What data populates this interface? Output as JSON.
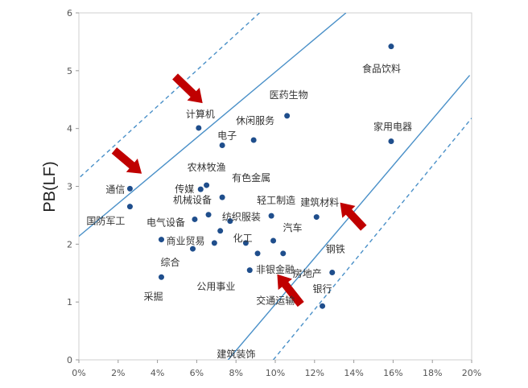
{
  "chart_data": {
    "type": "scatter",
    "ylabel": "PB(LF)",
    "xlim": [
      0,
      20
    ],
    "ylim": [
      0,
      6
    ],
    "x_ticks": [
      "0%",
      "2%",
      "4%",
      "6%",
      "8%",
      "10%",
      "12%",
      "14%",
      "16%",
      "18%",
      "20%"
    ],
    "y_ticks": [
      "0",
      "1",
      "2",
      "3",
      "4",
      "5",
      "6"
    ],
    "colors": {
      "point": "#1f4e8c",
      "line": "#4a90c8",
      "arrow": "#c00000"
    },
    "points": [
      {
        "name": "食品饮料",
        "x": 15.9,
        "y": 5.42
      },
      {
        "name": "医药生物",
        "x": 10.6,
        "y": 4.22
      },
      {
        "name": "家用电器",
        "x": 15.9,
        "y": 3.78
      },
      {
        "name": "计算机",
        "x": 6.1,
        "y": 4.01
      },
      {
        "name": "电子",
        "x": 7.3,
        "y": 3.71
      },
      {
        "name": "休闲服务",
        "x": 8.9,
        "y": 3.8
      },
      {
        "name": "通信",
        "x": 2.6,
        "y": 2.96
      },
      {
        "name": "农林牧渔",
        "x": 6.5,
        "y": 3.02
      },
      {
        "name": "传媒",
        "x": 6.2,
        "y": 2.95
      },
      {
        "name": "有色金属",
        "x": 7.3,
        "y": 2.81
      },
      {
        "name": "国防军工",
        "x": 2.6,
        "y": 2.65
      },
      {
        "name": "机械设备",
        "x": 6.6,
        "y": 2.51
      },
      {
        "name": "电气设备",
        "x": 5.9,
        "y": 2.43
      },
      {
        "name": "纺织服装",
        "x": 7.7,
        "y": 2.4
      },
      {
        "name": "轻工制造",
        "x": 9.8,
        "y": 2.49
      },
      {
        "name": "建筑材料",
        "x": 12.1,
        "y": 2.47
      },
      {
        "name": "化工",
        "x": 7.2,
        "y": 2.23
      },
      {
        "name": "汽车",
        "x": 9.9,
        "y": 2.06
      },
      {
        "name": "商业贸易",
        "x": 4.2,
        "y": 2.08
      },
      {
        "name": "综合",
        "x": 5.8,
        "y": 1.92
      },
      {
        "name": "非银金融",
        "x": 9.1,
        "y": 1.84
      },
      {
        "name": "房地产",
        "x": 10.4,
        "y": 1.84
      },
      {
        "name": "钢铁",
        "x": 12.9,
        "y": 1.51
      },
      {
        "name": "公用事业",
        "x": 6.9,
        "y": 2.02
      },
      {
        "name": "交通运输",
        "x": 8.7,
        "y": 1.55
      },
      {
        "name": "采掘",
        "x": 4.2,
        "y": 1.43
      },
      {
        "name": "建筑装饰",
        "x": 8.5,
        "y": 2.02
      },
      {
        "name": "银行",
        "x": 12.4,
        "y": 0.93
      }
    ],
    "bands": [
      {
        "style": "dashed",
        "from": [
          -0.2,
          3.08
        ],
        "to": [
          9.2,
          6.0
        ]
      },
      {
        "style": "solid",
        "from": [
          -0.2,
          2.08
        ],
        "to": [
          13.6,
          6.0
        ]
      },
      {
        "style": "solid",
        "from": [
          7.6,
          0.0
        ],
        "to": [
          19.9,
          4.92
        ]
      },
      {
        "style": "dashed",
        "from": [
          9.9,
          0.0
        ],
        "to": [
          20.0,
          4.18
        ]
      }
    ],
    "arrows": [
      {
        "from": [
          4.9,
          4.9
        ],
        "to": [
          6.3,
          4.44
        ]
      },
      {
        "from": [
          1.8,
          3.62
        ],
        "to": [
          3.2,
          3.22
        ]
      },
      {
        "from": [
          11.3,
          0.96
        ],
        "to": [
          10.1,
          1.48
        ]
      },
      {
        "from": [
          14.5,
          2.28
        ],
        "to": [
          13.3,
          2.72
        ]
      }
    ]
  }
}
